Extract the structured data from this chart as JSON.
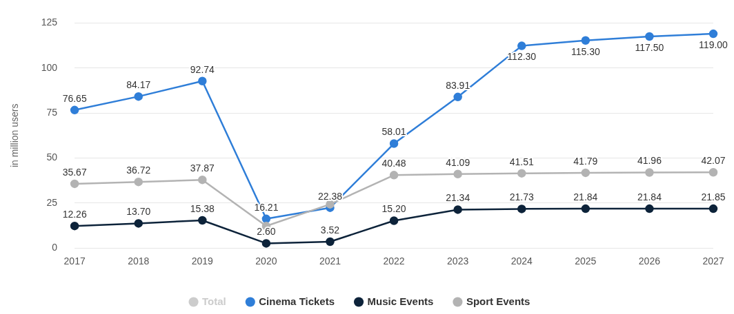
{
  "chart_data": {
    "type": "line",
    "ylabel": "in million users",
    "categories": [
      "2017",
      "2018",
      "2019",
      "2020",
      "2021",
      "2022",
      "2023",
      "2024",
      "2025",
      "2026",
      "2027"
    ],
    "ylim": [
      0,
      125
    ],
    "yticks": [
      0,
      25,
      50,
      75,
      100,
      125
    ],
    "grid": "y",
    "legend": "bottom",
    "marker": "circle",
    "line_style": "solid",
    "series": [
      {
        "name": "Total",
        "color": "#cccccc",
        "values": [
          null,
          null,
          null,
          null,
          null,
          null,
          null,
          null,
          null,
          null,
          null
        ]
      },
      {
        "name": "Cinema Tickets",
        "color": "#2f7ed8",
        "values": [
          76.65,
          84.17,
          92.74,
          16.21,
          22.38,
          58.01,
          83.91,
          112.3,
          115.3,
          117.5,
          119.0
        ],
        "value_labels": [
          "76.65",
          "84.17",
          "92.74",
          "16.21",
          "22.38",
          "58.01",
          "83.91",
          "112.30",
          "115.30",
          "117.50",
          "119.00"
        ]
      },
      {
        "name": "Music Events",
        "color": "#0d233a",
        "values": [
          12.26,
          13.7,
          15.38,
          2.6,
          3.52,
          15.2,
          21.34,
          21.73,
          21.84,
          21.84,
          21.85
        ],
        "value_labels": [
          "12.26",
          "13.70",
          "15.38",
          "2.60",
          "3.52",
          "15.20",
          "21.34",
          "21.73",
          "21.84",
          "21.84",
          "21.85"
        ]
      },
      {
        "name": "Sport Events",
        "color": "#b3b3b3",
        "values": [
          35.67,
          36.72,
          37.87,
          12.2,
          24.3,
          40.48,
          41.09,
          41.51,
          41.79,
          41.96,
          42.07
        ],
        "value_labels": [
          "35.67",
          "36.72",
          "37.87",
          null,
          null,
          "40.48",
          "41.09",
          "41.51",
          "41.79",
          "41.96",
          "42.07"
        ]
      }
    ]
  }
}
